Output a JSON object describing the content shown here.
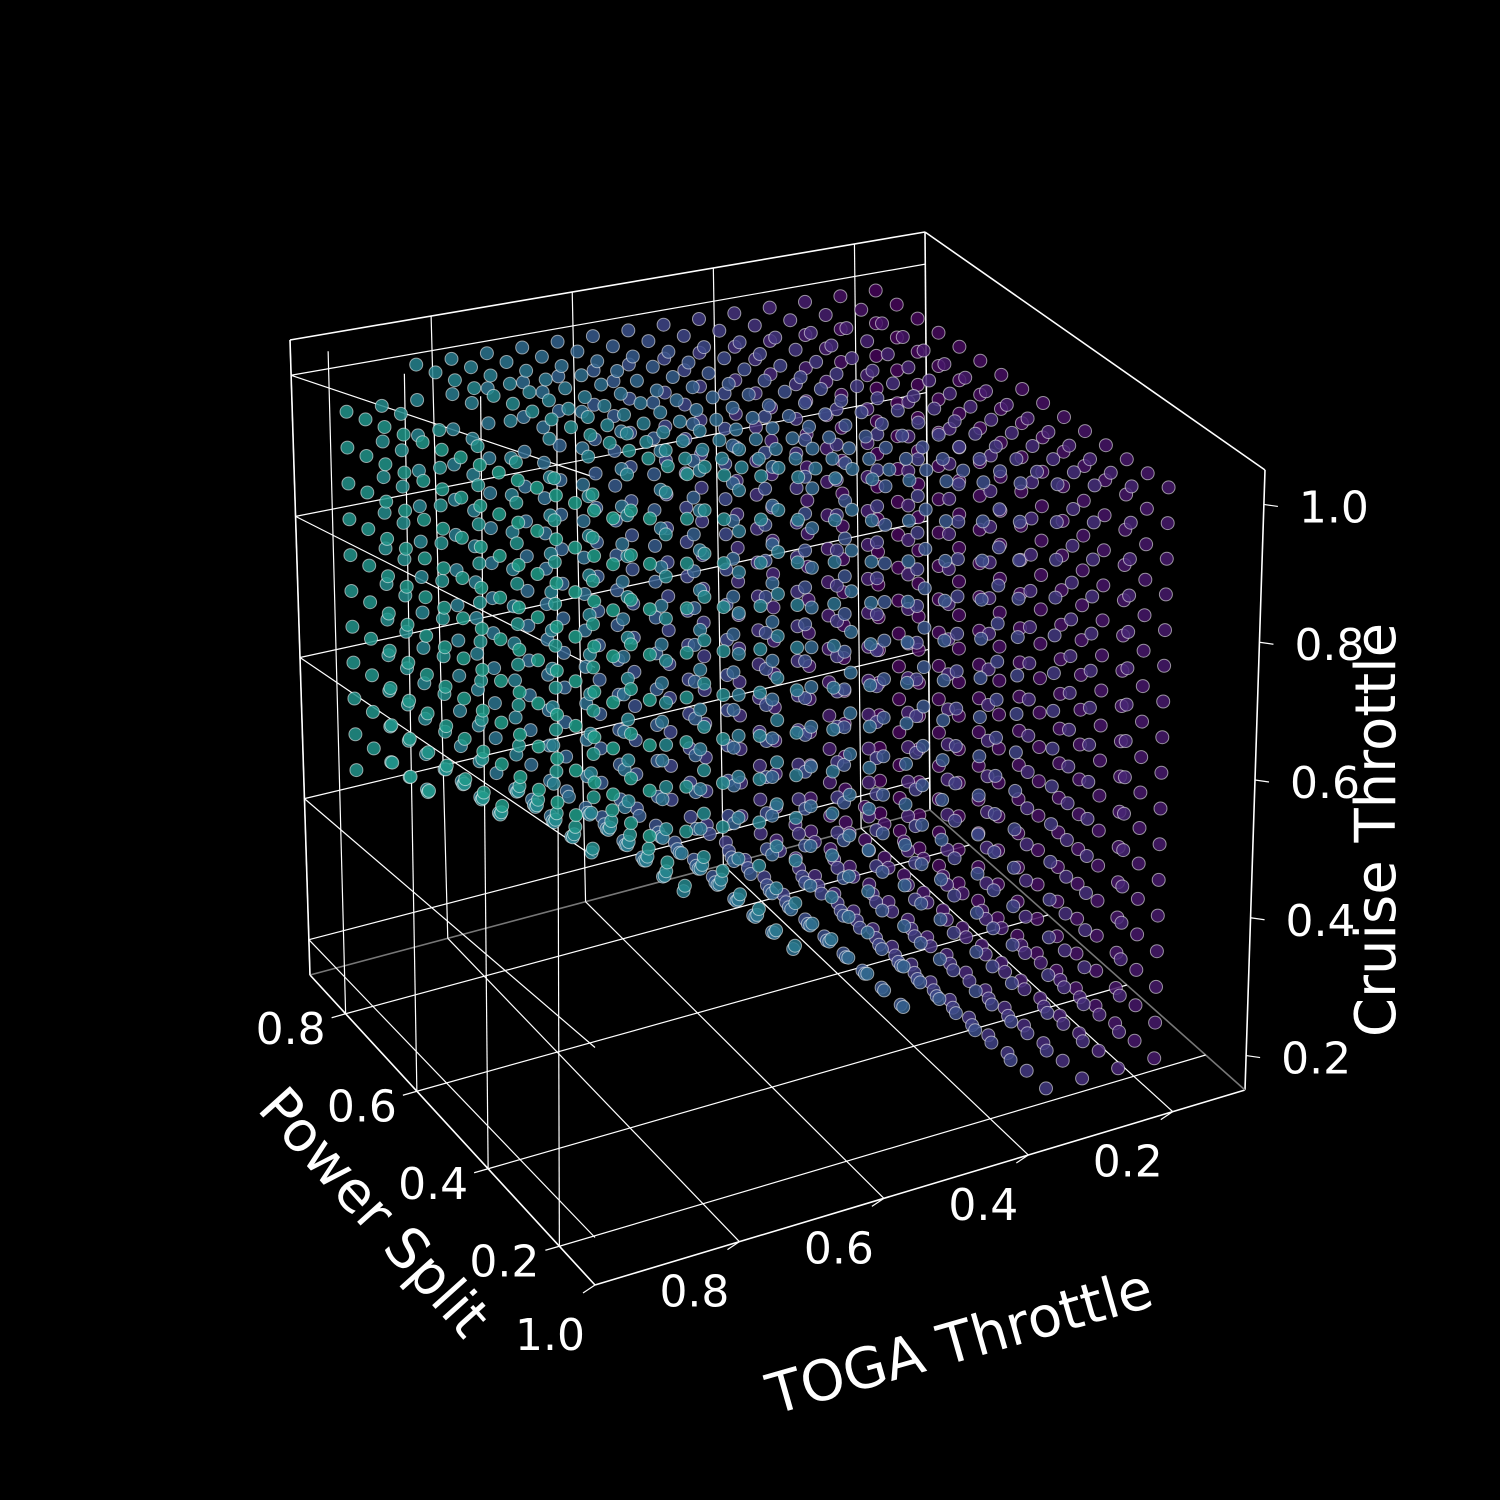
{
  "chart_data": {
    "type": "scatter",
    "projection": "3d",
    "title": "",
    "axes": {
      "x": {
        "label": "TOGA Throttle",
        "range": [
          0.1,
          1.0
        ],
        "ticks": [
          "0.2",
          "0.4",
          "0.6",
          "0.8",
          "1.0"
        ],
        "tick_values": [
          0.2,
          0.4,
          0.6,
          0.8,
          1.0
        ]
      },
      "y": {
        "label": "Power Split",
        "range": [
          0.1,
          0.9
        ],
        "ticks": [
          "0.2",
          "0.4",
          "0.6",
          "0.8"
        ],
        "tick_values": [
          0.2,
          0.4,
          0.6,
          0.8
        ]
      },
      "z": {
        "label": "Cruise Throttle",
        "range": [
          0.15,
          1.05
        ],
        "ticks": [
          "0.2",
          "0.4",
          "0.6",
          "0.8",
          "1.0"
        ],
        "tick_values": [
          0.2,
          0.4,
          0.6,
          0.8,
          1.0
        ]
      }
    },
    "grid": true,
    "background": "#000000",
    "grid_color": "#ffffff",
    "points": {
      "description": "Regular grid of feasible design points; points exist where TOGA throttle + cruise throttle region is feasible",
      "toga_throttle": {
        "min": 0.2,
        "max": 0.95,
        "step": 0.05
      },
      "power_split": {
        "min": 0.15,
        "max": 0.85,
        "step": 0.05
      },
      "cruise_throttle": {
        "min": 0.2,
        "max": 1.0,
        "step": 0.05
      },
      "color_map": "viridis",
      "color_by": "TOGA Throttle",
      "marker_edge_color": "#ffffff"
    }
  }
}
